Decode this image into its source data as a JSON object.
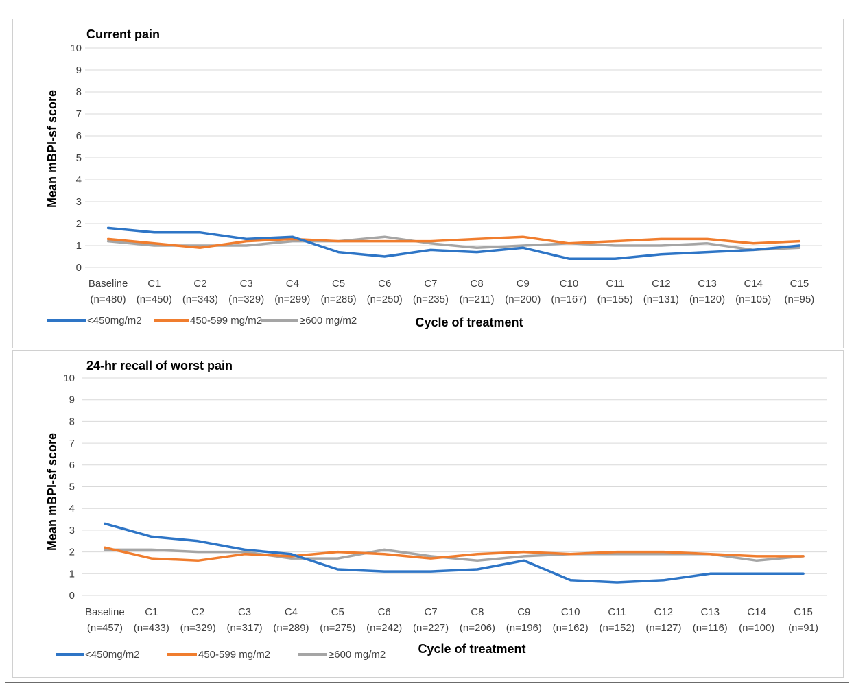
{
  "chart_data": [
    {
      "type": "line",
      "title": "Current pain",
      "ylabel": "Mean mBPI-sf score",
      "xlabel": "Cycle of treatment",
      "ylim": [
        0,
        10
      ],
      "yticks": [
        0,
        1,
        2,
        3,
        4,
        5,
        6,
        7,
        8,
        9,
        10
      ],
      "grid": true,
      "legend_position": "bottom-left",
      "categories": [
        [
          "Baseline",
          "(n=480)"
        ],
        [
          "C1",
          "(n=450)"
        ],
        [
          "C2",
          "(n=343)"
        ],
        [
          "C3",
          "(n=329)"
        ],
        [
          "C4",
          "(n=299)"
        ],
        [
          "C5",
          "(n=286)"
        ],
        [
          "C6",
          "(n=250)"
        ],
        [
          "C7",
          "(n=235)"
        ],
        [
          "C8",
          "(n=211)"
        ],
        [
          "C9",
          "(n=200)"
        ],
        [
          "C10",
          "(n=167)"
        ],
        [
          "C11",
          "(n=155)"
        ],
        [
          "C12",
          "(n=131)"
        ],
        [
          "C13",
          "(n=120)"
        ],
        [
          "C14",
          "(n=105)"
        ],
        [
          "C15",
          "(n=95)"
        ]
      ],
      "series": [
        {
          "name": "<450mg/m2",
          "color": "#2e75c6",
          "values": [
            1.8,
            1.6,
            1.6,
            1.3,
            1.4,
            0.7,
            0.5,
            0.8,
            0.7,
            0.9,
            0.4,
            0.4,
            0.6,
            0.7,
            0.8,
            1.0
          ]
        },
        {
          "name": "450-599 mg/m2",
          "color": "#f07d2e",
          "values": [
            1.3,
            1.1,
            0.9,
            1.2,
            1.3,
            1.2,
            1.2,
            1.2,
            1.3,
            1.4,
            1.1,
            1.2,
            1.3,
            1.3,
            1.1,
            1.2
          ]
        },
        {
          "name": "≥600 mg/m2",
          "color": "#a5a5a5",
          "values": [
            1.2,
            1.0,
            1.0,
            1.0,
            1.2,
            1.2,
            1.4,
            1.1,
            0.9,
            1.0,
            1.1,
            1.0,
            1.0,
            1.1,
            0.8,
            0.9
          ]
        }
      ]
    },
    {
      "type": "line",
      "title": "24-hr recall of worst pain",
      "ylabel": "Mean mBPI-sf score",
      "xlabel": "Cycle of treatment",
      "ylim": [
        0,
        10
      ],
      "yticks": [
        0,
        1,
        2,
        3,
        4,
        5,
        6,
        7,
        8,
        9,
        10
      ],
      "grid": true,
      "legend_position": "bottom-left",
      "categories": [
        [
          "Baseline",
          "(n=457)"
        ],
        [
          "C1",
          "(n=433)"
        ],
        [
          "C2",
          "(n=329)"
        ],
        [
          "C3",
          "(n=317)"
        ],
        [
          "C4",
          "(n=289)"
        ],
        [
          "C5",
          "(n=275)"
        ],
        [
          "C6",
          "(n=242)"
        ],
        [
          "C7",
          "(n=227)"
        ],
        [
          "C8",
          "(n=206)"
        ],
        [
          "C9",
          "(n=196)"
        ],
        [
          "C10",
          "(n=162)"
        ],
        [
          "C11",
          "(n=152)"
        ],
        [
          "C12",
          "(n=127)"
        ],
        [
          "C13",
          "(n=116)"
        ],
        [
          "C14",
          "(n=100)"
        ],
        [
          "C15",
          "(n=91)"
        ]
      ],
      "series": [
        {
          "name": "<450mg/m2",
          "color": "#2e75c6",
          "values": [
            3.3,
            2.7,
            2.5,
            2.1,
            1.9,
            1.2,
            1.1,
            1.1,
            1.2,
            1.6,
            0.7,
            0.6,
            0.7,
            1.0,
            1.0,
            1.0
          ]
        },
        {
          "name": "450-599 mg/m2",
          "color": "#f07d2e",
          "values": [
            2.2,
            1.7,
            1.6,
            1.9,
            1.8,
            2.0,
            1.9,
            1.7,
            1.9,
            2.0,
            1.9,
            2.0,
            2.0,
            1.9,
            1.8,
            1.8
          ]
        },
        {
          "name": "≥600 mg/m2",
          "color": "#a5a5a5",
          "values": [
            2.1,
            2.1,
            2.0,
            2.0,
            1.7,
            1.7,
            2.1,
            1.8,
            1.6,
            1.8,
            1.9,
            1.9,
            1.9,
            1.9,
            1.6,
            1.8
          ]
        }
      ]
    }
  ]
}
